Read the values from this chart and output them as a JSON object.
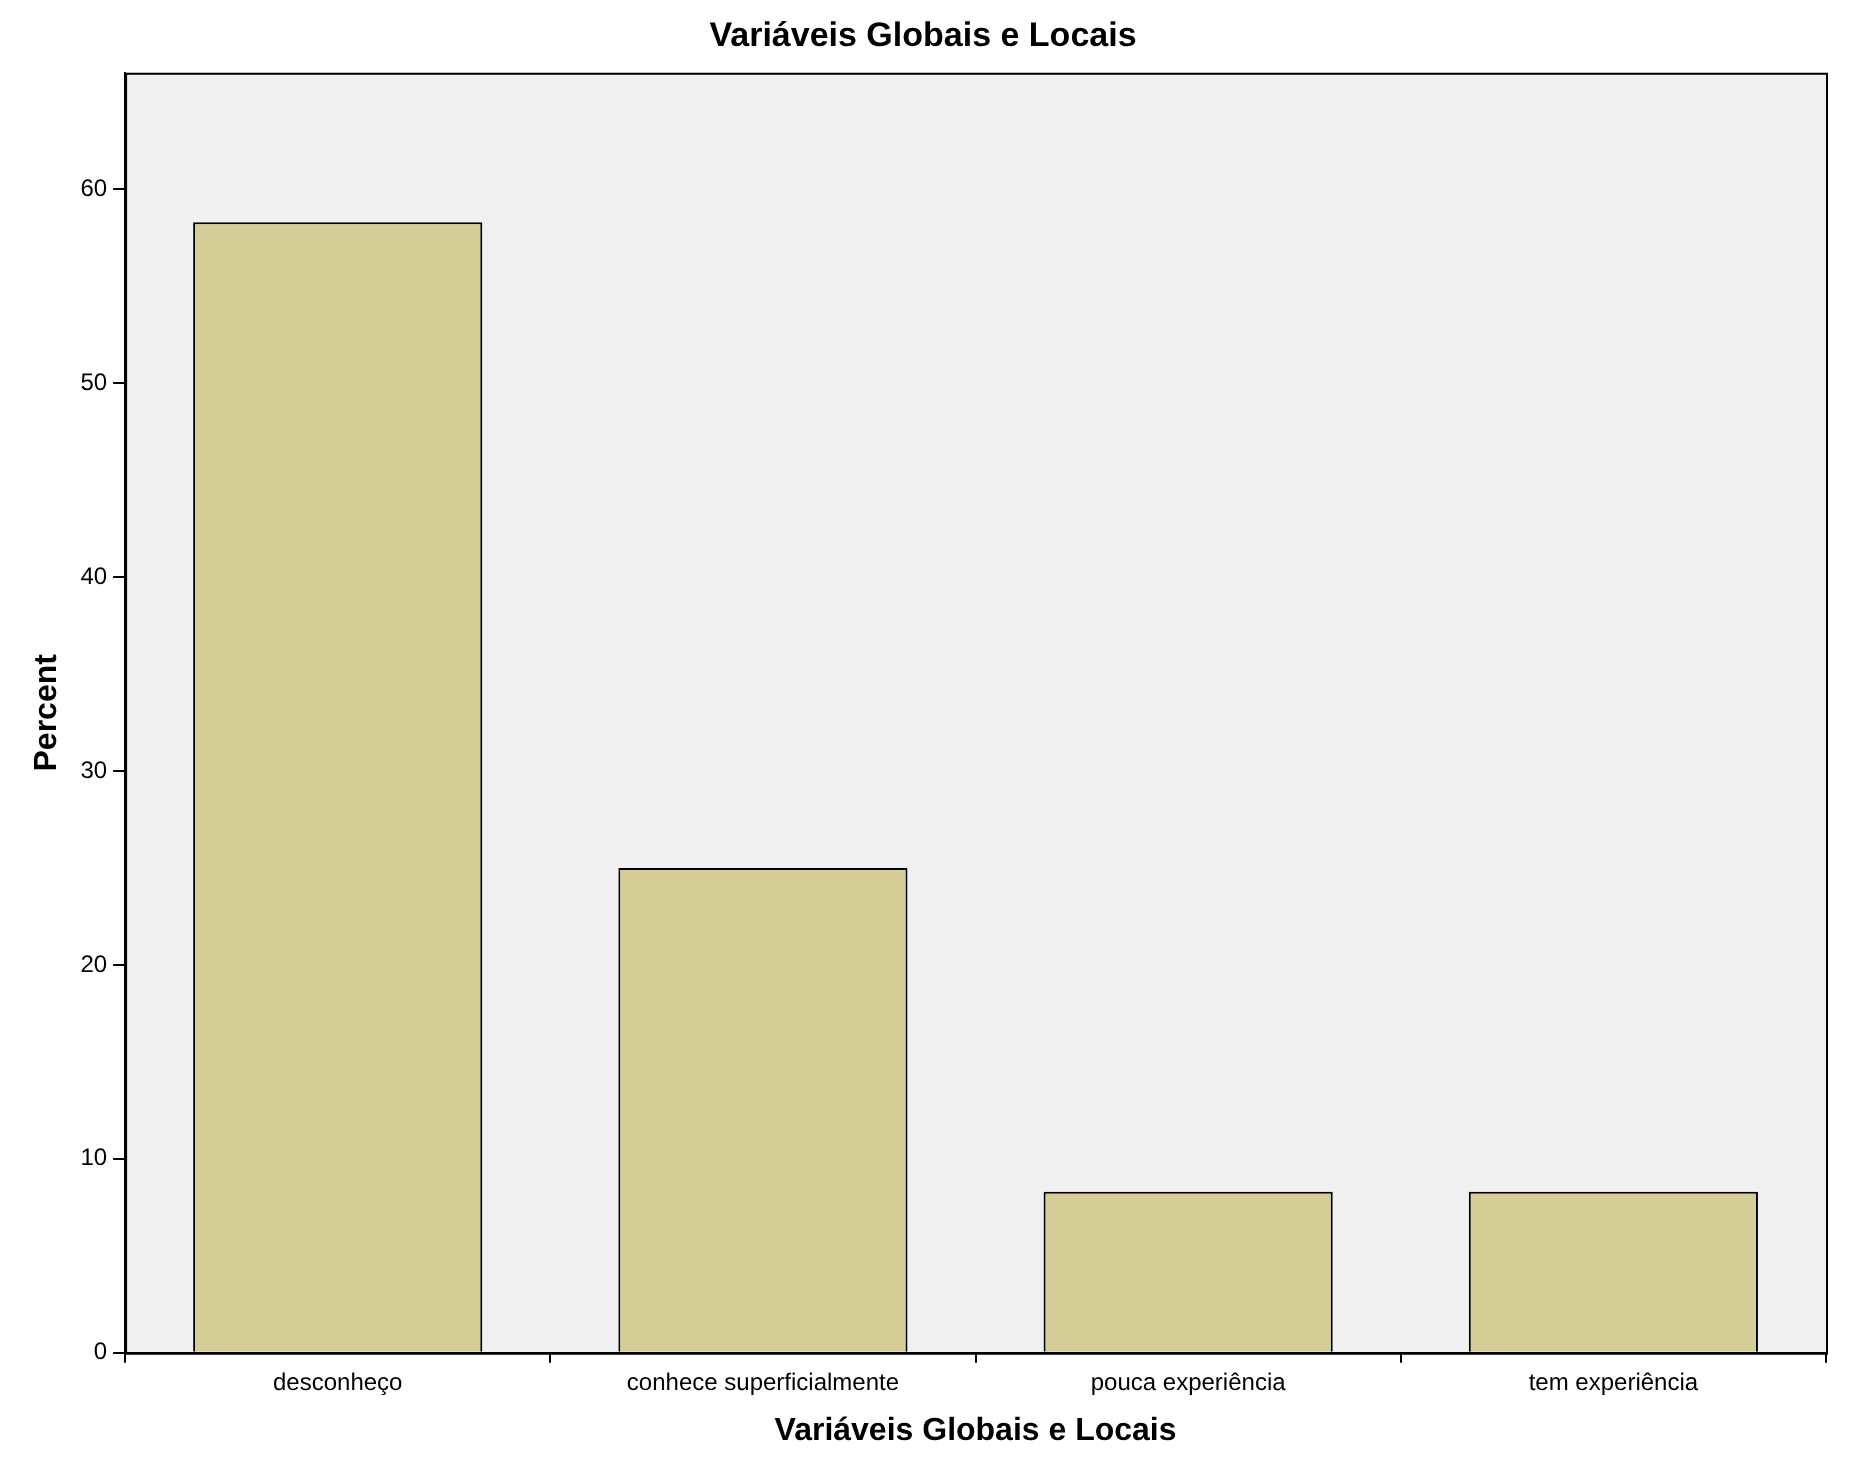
{
  "chart_data": {
    "type": "bar",
    "title": "Variáveis Globais e Locais",
    "xlabel": "Variáveis Globais e Locais",
    "ylabel": "Percent",
    "categories": [
      "desconheço",
      "conhece superficialmente",
      "pouca experiência",
      "tem experiência"
    ],
    "values": [
      58.3,
      25,
      8.3,
      8.3
    ],
    "color": "#d5cd96",
    "ylim": [
      0,
      66
    ],
    "yticks": [
      0,
      10,
      20,
      30,
      40,
      50,
      60
    ],
    "grid": false,
    "legend": false
  }
}
